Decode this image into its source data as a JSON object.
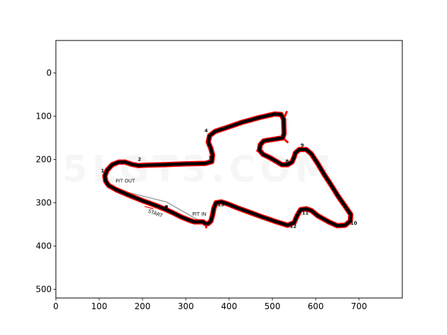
{
  "chart_data": {
    "type": "image",
    "xlim": [
      0,
      800
    ],
    "ylim": [
      520,
      -75
    ],
    "x_ticks": [
      "0",
      "100",
      "200",
      "300",
      "400",
      "500",
      "600",
      "700"
    ],
    "y_ticks": [
      "0",
      "100",
      "200",
      "300",
      "400",
      "500"
    ],
    "y_tick_values": [
      0,
      100,
      200,
      300,
      400,
      500
    ],
    "x_tick_values": [
      0,
      100,
      200,
      300,
      400,
      500,
      600,
      700
    ],
    "track_points": [
      [
        345,
        348
      ],
      [
        340,
        344
      ],
      [
        320,
        344
      ],
      [
        310,
        341
      ],
      [
        290,
        333
      ],
      [
        270,
        323
      ],
      [
        250,
        314
      ],
      [
        230,
        306
      ],
      [
        200,
        295
      ],
      [
        170,
        283
      ],
      [
        140,
        270
      ],
      [
        122,
        260
      ],
      [
        115,
        250
      ],
      [
        113,
        238
      ],
      [
        118,
        225
      ],
      [
        130,
        212
      ],
      [
        145,
        206
      ],
      [
        160,
        206
      ],
      [
        175,
        211
      ],
      [
        190,
        214
      ],
      [
        210,
        213
      ],
      [
        250,
        212
      ],
      [
        300,
        210
      ],
      [
        345,
        209
      ],
      [
        360,
        205
      ],
      [
        362,
        190
      ],
      [
        358,
        175
      ],
      [
        352,
        160
      ],
      [
        355,
        145
      ],
      [
        368,
        135
      ],
      [
        395,
        126
      ],
      [
        430,
        114
      ],
      [
        470,
        103
      ],
      [
        505,
        95
      ],
      [
        520,
        96
      ],
      [
        526,
        107
      ],
      [
        527,
        140
      ],
      [
        524,
        150
      ],
      [
        505,
        153
      ],
      [
        480,
        157
      ],
      [
        472,
        166
      ],
      [
        470,
        178
      ],
      [
        478,
        188
      ],
      [
        495,
        196
      ],
      [
        510,
        205
      ],
      [
        522,
        212
      ],
      [
        535,
        212
      ],
      [
        545,
        206
      ],
      [
        550,
        195
      ],
      [
        553,
        185
      ],
      [
        562,
        177
      ],
      [
        578,
        177
      ],
      [
        590,
        187
      ],
      [
        605,
        210
      ],
      [
        620,
        235
      ],
      [
        635,
        258
      ],
      [
        652,
        285
      ],
      [
        668,
        308
      ],
      [
        681,
        327
      ],
      [
        680,
        342
      ],
      [
        668,
        352
      ],
      [
        650,
        353
      ],
      [
        630,
        344
      ],
      [
        605,
        330
      ],
      [
        590,
        318
      ],
      [
        578,
        314
      ],
      [
        565,
        316
      ],
      [
        557,
        330
      ],
      [
        550,
        346
      ],
      [
        535,
        352
      ],
      [
        510,
        344
      ],
      [
        480,
        334
      ],
      [
        450,
        323
      ],
      [
        420,
        312
      ],
      [
        395,
        302
      ],
      [
        382,
        298
      ],
      [
        370,
        300
      ],
      [
        365,
        312
      ],
      [
        362,
        328
      ],
      [
        358,
        342
      ],
      [
        352,
        348
      ]
    ],
    "red_path_end": [
      533,
      90
    ],
    "red_hook_end": [
      535,
      160
    ],
    "corner_labels": [
      {
        "text": "1",
        "x": 108,
        "y": 230
      },
      {
        "text": "2",
        "x": 193,
        "y": 203
      },
      {
        "text": "3",
        "x": 356,
        "y": 200
      },
      {
        "text": "4",
        "x": 347,
        "y": 137
      },
      {
        "text": "8",
        "x": 534,
        "y": 208
      },
      {
        "text": "9",
        "x": 569,
        "y": 171
      },
      {
        "text": "10",
        "x": 688,
        "y": 351
      },
      {
        "text": "11",
        "x": 576,
        "y": 327
      },
      {
        "text": "12",
        "x": 548,
        "y": 358
      },
      {
        "text": "13",
        "x": 381,
        "y": 308
      },
      {
        "text": "4",
        "x": 346,
        "y": 352
      }
    ],
    "annotations": [
      {
        "text": "PIT OUT",
        "x": 138,
        "y": 253
      },
      {
        "text": "START",
        "x": 212,
        "y": 322
      },
      {
        "text": "PIT IN",
        "x": 315,
        "y": 330
      }
    ],
    "watermark": "5LGT3.COM",
    "colors": {
      "outer_track": "#ff0000",
      "inner_track": "#000000",
      "pit_lane": "#999999"
    },
    "grid": false
  }
}
